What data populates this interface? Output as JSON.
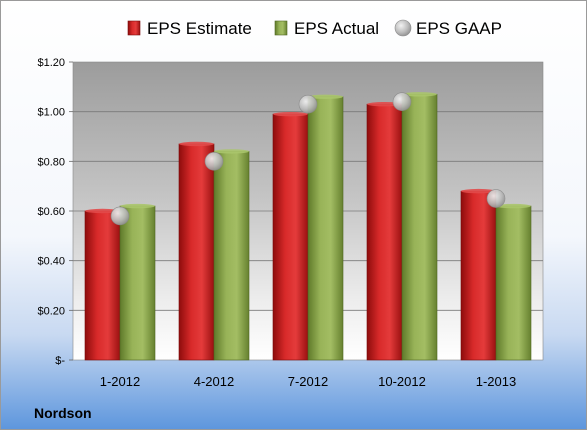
{
  "company": "Nordson",
  "chart_data": {
    "type": "bar",
    "categories": [
      "1-2012",
      "4-2012",
      "7-2012",
      "10-2012",
      "1-2013"
    ],
    "series": [
      {
        "name": "EPS Estimate",
        "kind": "bar",
        "color": "#cc1f1f",
        "values": [
          0.6,
          0.87,
          0.99,
          1.03,
          0.68
        ]
      },
      {
        "name": "EPS Actual",
        "kind": "bar",
        "color": "#8aa64a",
        "values": [
          0.62,
          0.84,
          1.06,
          1.07,
          0.62
        ]
      },
      {
        "name": "EPS GAAP",
        "kind": "marker",
        "color": "#b8b8b8",
        "values": [
          0.58,
          0.8,
          1.03,
          1.04,
          0.65
        ]
      }
    ],
    "y_ticks": [
      {
        "value": 0,
        "label": "$-"
      },
      {
        "value": 0.2,
        "label": "$0.20"
      },
      {
        "value": 0.4,
        "label": "$0.40"
      },
      {
        "value": 0.6,
        "label": "$0.60"
      },
      {
        "value": 0.8,
        "label": "$0.80"
      },
      {
        "value": 1.0,
        "label": "$1.00"
      },
      {
        "value": 1.2,
        "label": "$1.20"
      }
    ],
    "ylim": [
      0,
      1.2
    ],
    "grid": true,
    "legend": "top"
  }
}
